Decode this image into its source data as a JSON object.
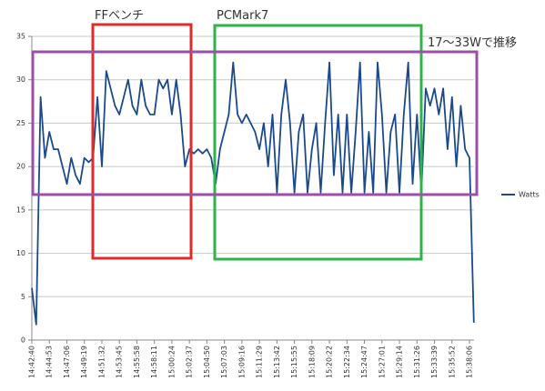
{
  "chart_data": {
    "type": "line",
    "x": [
      "14:42:40",
      null,
      null,
      null,
      "14:44:53",
      null,
      null,
      null,
      "14:47:06",
      null,
      null,
      null,
      "14:49:19",
      null,
      null,
      null,
      "14:51:32",
      null,
      null,
      null,
      "14:53:45",
      null,
      null,
      null,
      "14:55:58",
      null,
      null,
      null,
      "14:58:11",
      null,
      null,
      null,
      "15:00:24",
      null,
      null,
      null,
      "15:02:37",
      null,
      null,
      null,
      "15:04:50",
      null,
      null,
      null,
      "15:07:03",
      null,
      null,
      null,
      "15:09:16",
      null,
      null,
      null,
      "15:11:29",
      null,
      null,
      null,
      "15:13:42",
      null,
      null,
      null,
      "15:15:55",
      null,
      null,
      null,
      "15:18:09",
      null,
      null,
      null,
      "15:20:22",
      null,
      null,
      null,
      "15:22:34",
      null,
      null,
      null,
      "15:24:47",
      null,
      null,
      null,
      "15:27:01",
      null,
      null,
      null,
      "15:29:14",
      null,
      null,
      null,
      "15:31:26",
      null,
      null,
      null,
      "15:33:39",
      null,
      null,
      null,
      "15:35:52",
      null,
      null,
      null,
      "15:38:06",
      null
    ],
    "series": [
      {
        "name": "Watts",
        "color": "#1b4a8c",
        "values": [
          6,
          1.8,
          28,
          21,
          24,
          22,
          22,
          20,
          18,
          21,
          19,
          18,
          21,
          20.5,
          21,
          28,
          20,
          31,
          29,
          27,
          26,
          28,
          30,
          27,
          26,
          30,
          27,
          26,
          26,
          30,
          29,
          30,
          26,
          30,
          26,
          20,
          22,
          21.5,
          22,
          21.5,
          22,
          21,
          18,
          22,
          24,
          26,
          32,
          26,
          25,
          26,
          25,
          24,
          22,
          25,
          20,
          26,
          17,
          26,
          30,
          25,
          17,
          24,
          26,
          17,
          22,
          25,
          17,
          25,
          32,
          19,
          26,
          17,
          26,
          17,
          24,
          32,
          17,
          24,
          17,
          32,
          26,
          17,
          24,
          26,
          17,
          26,
          32,
          18,
          26,
          17,
          29,
          27,
          29,
          26,
          29,
          22,
          28,
          20,
          27,
          22,
          21,
          2
        ]
      }
    ],
    "ylim": [
      0,
      35
    ],
    "yticks": [
      0,
      5,
      10,
      15,
      20,
      25,
      30,
      35
    ],
    "grid": true,
    "legend": "right",
    "annotations": [
      {
        "text": "FFベンチ",
        "color": "#e02b2b"
      },
      {
        "text": "PCMark7",
        "color": "#2db34a"
      },
      {
        "text": "17～33Wで推移",
        "color": "#9b4fa8"
      }
    ]
  }
}
